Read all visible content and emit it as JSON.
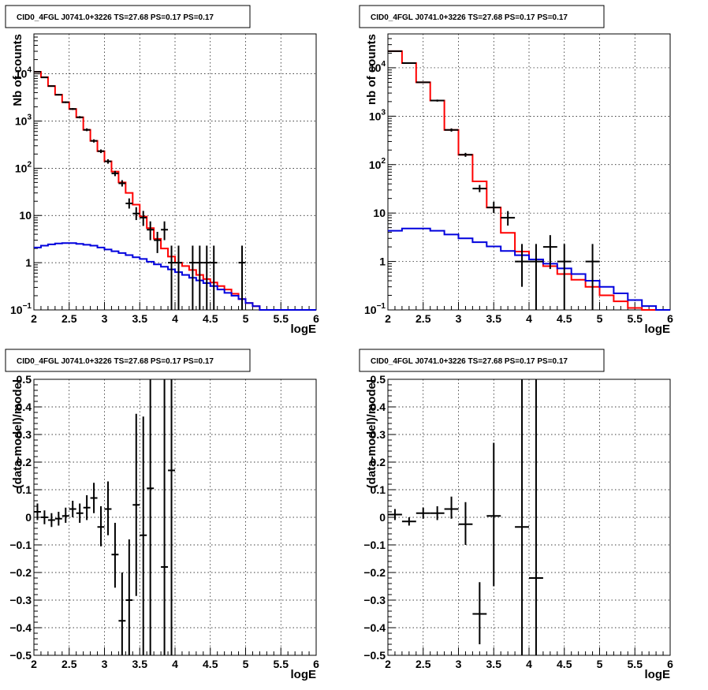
{
  "chart_data": [
    {
      "type": "histogram-log",
      "title": "CID0_4FGL J0741.0+3226 TS=27.68 PS=0.17 PS=0.17",
      "xlabel": "logE",
      "ylabel": "Nb of counts",
      "xlim": [
        2,
        6
      ],
      "ylim": [
        0.1,
        70000
      ],
      "log_y": true,
      "grid": true,
      "x_ticks": [
        "2",
        "2.5",
        "3",
        "3.5",
        "4",
        "4.5",
        "5",
        "5.5",
        "6"
      ],
      "y_ticks": [
        {
          "v": 0.1,
          "label": "10",
          "sup": "−1"
        },
        {
          "v": 1,
          "label": "1",
          "sup": ""
        },
        {
          "v": 10,
          "label": "10",
          "sup": ""
        },
        {
          "v": 100,
          "label": "10",
          "sup": "2"
        },
        {
          "v": 1000,
          "label": "10",
          "sup": "3"
        },
        {
          "v": 10000,
          "label": "10",
          "sup": "4"
        }
      ],
      "bin_edges": [
        2.0,
        2.1,
        2.2,
        2.3,
        2.4,
        2.5,
        2.6,
        2.7,
        2.8,
        2.9,
        3.0,
        3.1,
        3.2,
        3.3,
        3.4,
        3.5,
        3.6,
        3.7,
        3.8,
        3.9,
        4.0,
        4.1,
        4.2,
        4.3,
        4.4,
        4.5,
        4.6,
        4.7,
        4.8,
        4.9,
        5.0,
        5.1,
        5.2,
        5.3,
        5.4,
        5.5,
        5.6,
        5.7,
        5.8,
        5.9,
        6.0
      ],
      "series": [
        {
          "color": "#ff0000",
          "values": [
            11000,
            8500,
            5500,
            3600,
            2500,
            1800,
            1200,
            650,
            380,
            230,
            140,
            85,
            50,
            30,
            17,
            9.5,
            5.4,
            3.2,
            2.0,
            1.35,
            1.0,
            0.85,
            0.7,
            0.55,
            0.45,
            0.38,
            0.32,
            0.27,
            0.22,
            0.17,
            0.14,
            0.12,
            0.1,
            0.1,
            0.1,
            0.1,
            0.1,
            0.1,
            0.1,
            0.1
          ]
        },
        {
          "color": "#0000dd",
          "values": [
            2.1,
            2.3,
            2.45,
            2.55,
            2.6,
            2.6,
            2.5,
            2.4,
            2.3,
            2.1,
            1.9,
            1.75,
            1.6,
            1.45,
            1.3,
            1.2,
            1.05,
            0.92,
            0.82,
            0.72,
            0.63,
            0.55,
            0.48,
            0.42,
            0.37,
            0.32,
            0.27,
            0.23,
            0.2,
            0.17,
            0.14,
            0.12,
            0.1,
            0.1,
            0.1,
            0.1,
            0.1,
            0.1,
            0.1,
            0.1
          ]
        }
      ],
      "points": [
        {
          "x": 2.05,
          "y": 11000,
          "lo": 10700,
          "hi": 11300
        },
        {
          "x": 2.15,
          "y": 8400,
          "lo": 8200,
          "hi": 8600
        },
        {
          "x": 2.25,
          "y": 5500,
          "lo": 5350,
          "hi": 5650
        },
        {
          "x": 2.35,
          "y": 3600,
          "lo": 3480,
          "hi": 3720
        },
        {
          "x": 2.45,
          "y": 2500,
          "lo": 2400,
          "hi": 2600
        },
        {
          "x": 2.55,
          "y": 1800,
          "lo": 1720,
          "hi": 1880
        },
        {
          "x": 2.65,
          "y": 1200,
          "lo": 1140,
          "hi": 1270
        },
        {
          "x": 2.75,
          "y": 650,
          "lo": 610,
          "hi": 700
        },
        {
          "x": 2.85,
          "y": 380,
          "lo": 350,
          "hi": 410
        },
        {
          "x": 2.95,
          "y": 230,
          "lo": 210,
          "hi": 250
        },
        {
          "x": 3.05,
          "y": 140,
          "lo": 125,
          "hi": 155
        },
        {
          "x": 3.15,
          "y": 78,
          "lo": 68,
          "hi": 88
        },
        {
          "x": 3.25,
          "y": 48,
          "lo": 41,
          "hi": 56
        },
        {
          "x": 3.35,
          "y": 18,
          "lo": 14,
          "hi": 23
        },
        {
          "x": 3.45,
          "y": 11,
          "lo": 8,
          "hi": 15
        },
        {
          "x": 3.55,
          "y": 9,
          "lo": 6,
          "hi": 12.5
        },
        {
          "x": 3.65,
          "y": 5,
          "lo": 3,
          "hi": 7.5
        },
        {
          "x": 3.75,
          "y": 3,
          "lo": 1.6,
          "hi": 4.5
        },
        {
          "x": 3.85,
          "y": 5,
          "lo": 3,
          "hi": 7.5
        },
        {
          "x": 3.95,
          "y": 1,
          "lo": 0.1,
          "hi": 2.3
        },
        {
          "x": 4.05,
          "y": 1,
          "lo": 0.1,
          "hi": 2.3
        },
        {
          "x": 4.25,
          "y": 1,
          "lo": 0.1,
          "hi": 2.3
        },
        {
          "x": 4.35,
          "y": 1,
          "lo": 0.1,
          "hi": 2.3
        },
        {
          "x": 4.45,
          "y": 1,
          "lo": 0.1,
          "hi": 2.3
        },
        {
          "x": 4.55,
          "y": 1,
          "lo": 0.1,
          "hi": 2.3
        },
        {
          "x": 4.95,
          "y": 1,
          "lo": 0.1,
          "hi": 2.3
        }
      ],
      "xerr": 0.05
    },
    {
      "type": "histogram-log",
      "title": "CID0_4FGL J0741.0+3226 TS=27.68 PS=0.17 PS=0.17",
      "xlabel": "logE",
      "ylabel": "nb of counts",
      "xlim": [
        2,
        6
      ],
      "ylim": [
        0.1,
        50000
      ],
      "log_y": true,
      "grid": true,
      "x_ticks": [
        "2",
        "2.5",
        "3",
        "3.5",
        "4",
        "4.5",
        "5",
        "5.5",
        "6"
      ],
      "y_ticks": [
        {
          "v": 0.1,
          "label": "10",
          "sup": "−1"
        },
        {
          "v": 1,
          "label": "1",
          "sup": ""
        },
        {
          "v": 10,
          "label": "10",
          "sup": ""
        },
        {
          "v": 100,
          "label": "10",
          "sup": "2"
        },
        {
          "v": 1000,
          "label": "10",
          "sup": "3"
        },
        {
          "v": 10000,
          "label": "10",
          "sup": "4"
        }
      ],
      "bin_edges": [
        2.0,
        2.2,
        2.4,
        2.6,
        2.8,
        3.0,
        3.2,
        3.4,
        3.6,
        3.8,
        4.0,
        4.2,
        4.4,
        4.6,
        4.8,
        5.0,
        5.2,
        5.4,
        5.6,
        5.8,
        6.0
      ],
      "series": [
        {
          "color": "#ff0000",
          "values": [
            22000,
            12500,
            5000,
            2100,
            520,
            160,
            45,
            13,
            3.9,
            1.6,
            1.1,
            0.8,
            0.55,
            0.42,
            0.3,
            0.2,
            0.15,
            0.11,
            0.1,
            0.1
          ]
        },
        {
          "color": "#0000dd",
          "values": [
            4.3,
            4.8,
            4.8,
            4.3,
            3.6,
            3.0,
            2.5,
            2.05,
            1.65,
            1.35,
            1.1,
            0.9,
            0.72,
            0.55,
            0.4,
            0.3,
            0.22,
            0.16,
            0.12,
            0.1
          ]
        }
      ],
      "points": [
        {
          "x": 2.1,
          "y": 22000,
          "lo": 21500,
          "hi": 22500
        },
        {
          "x": 2.3,
          "y": 12500,
          "lo": 12100,
          "hi": 12900
        },
        {
          "x": 2.5,
          "y": 5000,
          "lo": 4850,
          "hi": 5150
        },
        {
          "x": 2.7,
          "y": 2100,
          "lo": 2000,
          "hi": 2200
        },
        {
          "x": 2.9,
          "y": 520,
          "lo": 480,
          "hi": 560
        },
        {
          "x": 3.1,
          "y": 160,
          "lo": 145,
          "hi": 175
        },
        {
          "x": 3.3,
          "y": 32,
          "lo": 27,
          "hi": 38
        },
        {
          "x": 3.5,
          "y": 13,
          "lo": 10,
          "hi": 17
        },
        {
          "x": 3.7,
          "y": 8,
          "lo": 5.5,
          "hi": 11
        },
        {
          "x": 3.9,
          "y": 1,
          "lo": 0.3,
          "hi": 2.3
        },
        {
          "x": 4.1,
          "y": 1,
          "lo": 0.1,
          "hi": 2.3
        },
        {
          "x": 4.3,
          "y": 2,
          "lo": 0.7,
          "hi": 3.5
        },
        {
          "x": 4.5,
          "y": 1,
          "lo": 0.1,
          "hi": 2.3
        },
        {
          "x": 4.9,
          "y": 1,
          "lo": 0.1,
          "hi": 2.3
        }
      ],
      "xerr": 0.1
    },
    {
      "type": "scatter-errorbars",
      "title": "CID0_4FGL J0741.0+3226 TS=27.68 PS=0.17 PS=0.17",
      "xlabel": "logE",
      "ylabel": "(data-model)/model",
      "xlim": [
        2,
        6
      ],
      "ylim": [
        -0.5,
        0.5
      ],
      "log_y": false,
      "grid": true,
      "x_ticks": [
        "2",
        "2.5",
        "3",
        "3.5",
        "4",
        "4.5",
        "5",
        "5.5",
        "6"
      ],
      "y_ticks": [
        {
          "v": -0.5,
          "label": "−0.5",
          "sup": ""
        },
        {
          "v": -0.4,
          "label": "−0.4",
          "sup": ""
        },
        {
          "v": -0.3,
          "label": "−0.3",
          "sup": ""
        },
        {
          "v": -0.2,
          "label": "−0.2",
          "sup": ""
        },
        {
          "v": -0.1,
          "label": "−0.1",
          "sup": ""
        },
        {
          "v": 0,
          "label": "0",
          "sup": ""
        },
        {
          "v": 0.1,
          "label": "0.1",
          "sup": ""
        },
        {
          "v": 0.2,
          "label": "0.2",
          "sup": ""
        },
        {
          "v": 0.3,
          "label": "0.3",
          "sup": ""
        },
        {
          "v": 0.4,
          "label": "0.4",
          "sup": ""
        },
        {
          "v": 0.5,
          "label": "0.5",
          "sup": ""
        }
      ],
      "points": [
        {
          "x": 2.05,
          "y": 0.02,
          "lo": -0.01,
          "hi": 0.05
        },
        {
          "x": 2.15,
          "y": 0.0,
          "lo": -0.025,
          "hi": 0.025
        },
        {
          "x": 2.25,
          "y": -0.01,
          "lo": -0.035,
          "hi": 0.015
        },
        {
          "x": 2.35,
          "y": -0.005,
          "lo": -0.03,
          "hi": 0.02
        },
        {
          "x": 2.45,
          "y": 0.005,
          "lo": -0.02,
          "hi": 0.035
        },
        {
          "x": 2.55,
          "y": 0.03,
          "lo": 0.0,
          "hi": 0.06
        },
        {
          "x": 2.65,
          "y": 0.015,
          "lo": -0.02,
          "hi": 0.05
        },
        {
          "x": 2.75,
          "y": 0.035,
          "lo": -0.01,
          "hi": 0.08
        },
        {
          "x": 2.85,
          "y": 0.07,
          "lo": 0.015,
          "hi": 0.125
        },
        {
          "x": 2.95,
          "y": -0.035,
          "lo": -0.105,
          "hi": 0.04
        },
        {
          "x": 3.05,
          "y": 0.03,
          "lo": -0.065,
          "hi": 0.13
        },
        {
          "x": 3.15,
          "y": -0.135,
          "lo": -0.255,
          "hi": -0.02
        },
        {
          "x": 3.25,
          "y": -0.375,
          "lo": -0.5,
          "hi": -0.2
        },
        {
          "x": 3.35,
          "y": -0.3,
          "lo": -0.5,
          "hi": -0.08
        },
        {
          "x": 3.45,
          "y": 0.045,
          "lo": -0.285,
          "hi": 0.375
        },
        {
          "x": 3.55,
          "y": -0.065,
          "lo": -0.5,
          "hi": 0.365
        },
        {
          "x": 3.65,
          "y": 0.105,
          "lo": -0.5,
          "hi": 0.5
        },
        {
          "x": 3.85,
          "y": -0.18,
          "lo": -0.5,
          "hi": 0.5
        },
        {
          "x": 3.95,
          "y": 0.17,
          "lo": -0.5,
          "hi": 0.5
        }
      ],
      "xerr": 0.05
    },
    {
      "type": "scatter-errorbars",
      "title": "CID0_4FGL J0741.0+3226 TS=27.68 PS=0.17 PS=0.17",
      "xlabel": "logE",
      "ylabel": "(data-model)/model",
      "xlim": [
        2,
        6
      ],
      "ylim": [
        -0.5,
        0.5
      ],
      "log_y": false,
      "grid": true,
      "x_ticks": [
        "2",
        "2.5",
        "3",
        "3.5",
        "4",
        "4.5",
        "5",
        "5.5",
        "6"
      ],
      "y_ticks": [
        {
          "v": -0.5,
          "label": "−0.5",
          "sup": ""
        },
        {
          "v": -0.4,
          "label": "−0.4",
          "sup": ""
        },
        {
          "v": -0.3,
          "label": "−0.3",
          "sup": ""
        },
        {
          "v": -0.2,
          "label": "−0.2",
          "sup": ""
        },
        {
          "v": -0.1,
          "label": "−0.1",
          "sup": ""
        },
        {
          "v": 0,
          "label": "0",
          "sup": ""
        },
        {
          "v": 0.1,
          "label": "0.1",
          "sup": ""
        },
        {
          "v": 0.2,
          "label": "0.2",
          "sup": ""
        },
        {
          "v": 0.3,
          "label": "0.3",
          "sup": ""
        },
        {
          "v": 0.4,
          "label": "0.4",
          "sup": ""
        },
        {
          "v": 0.5,
          "label": "0.5",
          "sup": ""
        }
      ],
      "points": [
        {
          "x": 2.1,
          "y": 0.01,
          "lo": -0.01,
          "hi": 0.03
        },
        {
          "x": 2.3,
          "y": -0.015,
          "lo": -0.03,
          "hi": 0.0
        },
        {
          "x": 2.5,
          "y": 0.015,
          "lo": -0.005,
          "hi": 0.035
        },
        {
          "x": 2.7,
          "y": 0.015,
          "lo": -0.01,
          "hi": 0.04
        },
        {
          "x": 2.9,
          "y": 0.03,
          "lo": -0.005,
          "hi": 0.075
        },
        {
          "x": 3.1,
          "y": -0.025,
          "lo": -0.1,
          "hi": 0.055
        },
        {
          "x": 3.3,
          "y": -0.35,
          "lo": -0.46,
          "hi": -0.235
        },
        {
          "x": 3.5,
          "y": 0.005,
          "lo": -0.25,
          "hi": 0.27
        },
        {
          "x": 3.9,
          "y": -0.035,
          "lo": -0.5,
          "hi": 0.5
        },
        {
          "x": 4.1,
          "y": -0.22,
          "lo": -0.5,
          "hi": 0.5
        }
      ],
      "xerr": 0.1
    }
  ]
}
